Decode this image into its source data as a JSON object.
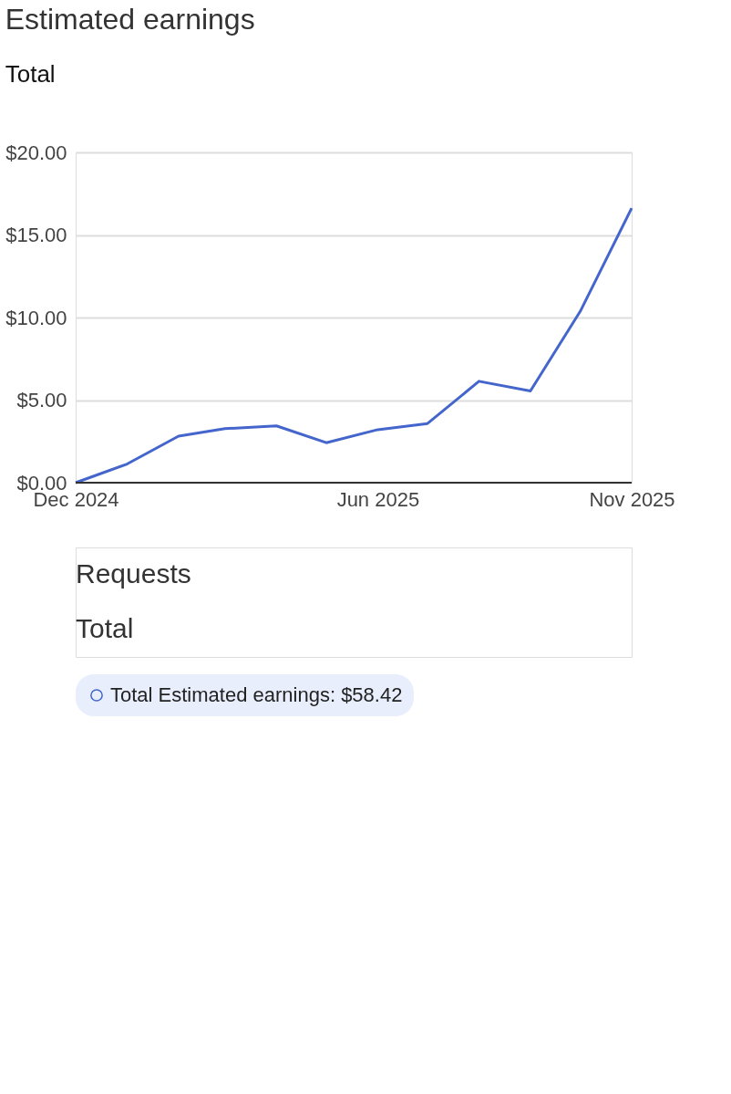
{
  "chart_data": {
    "type": "line",
    "title": "Estimated earnings",
    "subtitle": "Total",
    "x": [
      "2024-12",
      "2025-01",
      "2025-02",
      "2025-03",
      "2025-04",
      "2025-05",
      "2025-06",
      "2025-07",
      "2025-08",
      "2025-09",
      "2025-10",
      "2025-11"
    ],
    "series": [
      {
        "name": "Total Estimated earnings: $58.42",
        "color": "#4466cc",
        "values": [
          0,
          1.13,
          2.82,
          3.27,
          3.44,
          2.42,
          3.21,
          3.58,
          6.14,
          5.55,
          10.37,
          16.62
        ]
      }
    ],
    "xlim": [
      "2024-12",
      "2025-11"
    ],
    "xticks": [
      {
        "value": "2024-12",
        "label": "Dec 2024"
      },
      {
        "value": "2025-06",
        "label": "Jun 2025"
      },
      {
        "value": "2025-11",
        "label": "Nov 2025"
      }
    ],
    "ylim": [
      0,
      20
    ],
    "yticks": [
      {
        "value": 0,
        "label": "$0.00"
      },
      {
        "value": 5,
        "label": "$5.00"
      },
      {
        "value": 10,
        "label": "$10.00"
      },
      {
        "value": 15,
        "label": "$15.00"
      },
      {
        "value": 20,
        "label": "$20.00"
      }
    ],
    "grid": "y",
    "legend": "bottom",
    "marker": "none",
    "line_style": "solid",
    "annotations": [
      "Requests",
      "Total"
    ]
  }
}
